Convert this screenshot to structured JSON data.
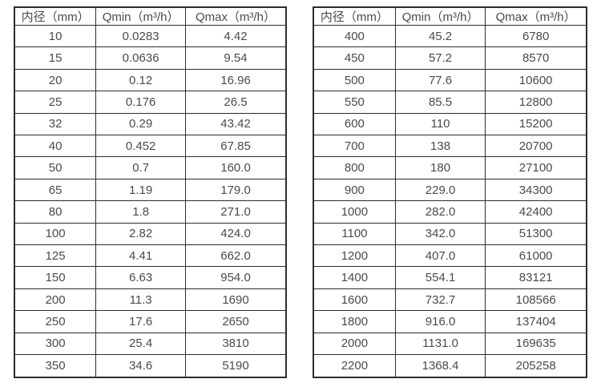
{
  "page": {
    "background_color": "#ffffff",
    "text_color": "#4a4a4a",
    "border_color": "#2d2d2d"
  },
  "tables": [
    {
      "id": "small-diameter-flow-table",
      "headers": [
        "内径（mm）",
        "Qmin（m³/h）",
        "Qmax（m³/h）"
      ],
      "rows": [
        [
          "10",
          "0.0283",
          "4.42"
        ],
        [
          "15",
          "0.0636",
          "9.54"
        ],
        [
          "20",
          "0.12",
          "16.96"
        ],
        [
          "25",
          "0.176",
          "26.5"
        ],
        [
          "32",
          "0.29",
          "43.42"
        ],
        [
          "40",
          "0.452",
          "67.85"
        ],
        [
          "50",
          "0.7",
          "160.0"
        ],
        [
          "65",
          "1.19",
          "179.0"
        ],
        [
          "80",
          "1.8",
          "271.0"
        ],
        [
          "100",
          "2.82",
          "424.0"
        ],
        [
          "125",
          "4.41",
          "662.0"
        ],
        [
          "150",
          "6.63",
          "954.0"
        ],
        [
          "200",
          "11.3",
          "1690"
        ],
        [
          "250",
          "17.6",
          "2650"
        ],
        [
          "300",
          "25.4",
          "3810"
        ],
        [
          "350",
          "34.6",
          "5190"
        ]
      ]
    },
    {
      "id": "large-diameter-flow-table",
      "headers": [
        "内径（mm）",
        "Qmin（m³/h）",
        "Qmax（m³/h）"
      ],
      "rows": [
        [
          "400",
          "45.2",
          "6780"
        ],
        [
          "450",
          "57.2",
          "8570"
        ],
        [
          "500",
          "77.6",
          "10600"
        ],
        [
          "550",
          "85.5",
          "12800"
        ],
        [
          "600",
          "110",
          "15200"
        ],
        [
          "700",
          "138",
          "20700"
        ],
        [
          "800",
          "180",
          "27100"
        ],
        [
          "900",
          "229.0",
          "34300"
        ],
        [
          "1000",
          "282.0",
          "42400"
        ],
        [
          "1100",
          "342.0",
          "51300"
        ],
        [
          "1200",
          "407.0",
          "61000"
        ],
        [
          "1400",
          "554.1",
          "83121"
        ],
        [
          "1600",
          "732.7",
          "108566"
        ],
        [
          "1800",
          "916.0",
          "137404"
        ],
        [
          "2000",
          "1131.0",
          "169635"
        ],
        [
          "2200",
          "1368.4",
          "205258"
        ]
      ]
    }
  ]
}
